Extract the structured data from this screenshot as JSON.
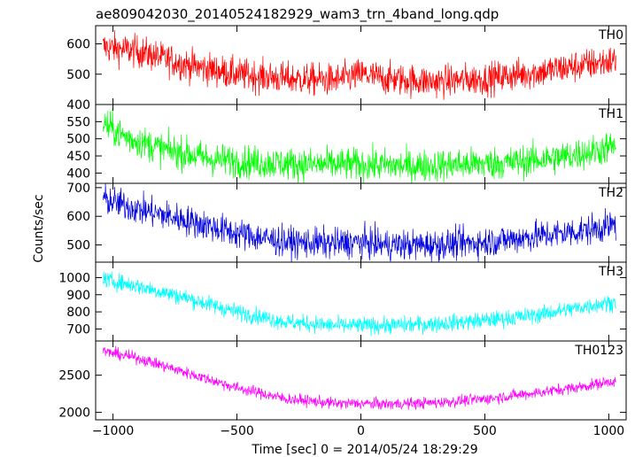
{
  "chart_data": {
    "type": "line",
    "title": "ae809042030_20140524182929_wam3_trn_4band_long.qdp",
    "xlabel": "Time [sec] 0 = 2014/05/24 18:29:29",
    "ylabel": "Counts/sec",
    "xlim": [
      -1070,
      1070
    ],
    "x_ticks": [
      -1000,
      -500,
      0,
      500,
      1000
    ],
    "grid": false,
    "sampling": "noisy light curves, ~8 s bins, trend values listed below",
    "panels": [
      {
        "name": "TH0",
        "color": "#ff0000",
        "ylim": [
          400,
          660
        ],
        "y_ticks": [
          400,
          500,
          600
        ],
        "x": [
          -1040,
          -900,
          -700,
          -500,
          -300,
          -100,
          0,
          100,
          300,
          500,
          700,
          900,
          1030
        ],
        "values": [
          590,
          575,
          530,
          500,
          485,
          480,
          500,
          485,
          475,
          485,
          505,
          530,
          545
        ],
        "noise": 38
      },
      {
        "name": "TH1",
        "color": "#00ff00",
        "ylim": [
          370,
          600
        ],
        "y_ticks": [
          400,
          450,
          500,
          550
        ],
        "x": [
          -1040,
          -950,
          -800,
          -600,
          -400,
          -200,
          0,
          200,
          400,
          600,
          800,
          950,
          1030
        ],
        "values": [
          545,
          505,
          470,
          440,
          430,
          425,
          425,
          420,
          425,
          430,
          445,
          465,
          480
        ],
        "noise": 34
      },
      {
        "name": "TH2",
        "color": "#0000e0",
        "ylim": [
          440,
          715
        ],
        "y_ticks": [
          500,
          600,
          700
        ],
        "x": [
          -1040,
          -900,
          -700,
          -500,
          -300,
          -100,
          0,
          100,
          300,
          500,
          700,
          900,
          1030
        ],
        "values": [
          660,
          625,
          585,
          540,
          510,
          505,
          510,
          500,
          500,
          510,
          530,
          550,
          570
        ],
        "noise": 38
      },
      {
        "name": "TH3",
        "color": "#00ffff",
        "ylim": [
          630,
          1090
        ],
        "y_ticks": [
          700,
          800,
          900,
          1000
        ],
        "x": [
          -1040,
          -900,
          -700,
          -500,
          -300,
          -100,
          0,
          100,
          300,
          500,
          700,
          900,
          1030
        ],
        "values": [
          990,
          950,
          880,
          800,
          740,
          720,
          720,
          720,
          730,
          750,
          780,
          830,
          860
        ],
        "noise": 35
      },
      {
        "name": "TH0123",
        "color": "#ff00ff",
        "ylim": [
          1900,
          2960
        ],
        "y_ticks": [
          2000,
          2500
        ],
        "x": [
          -1040,
          -900,
          -700,
          -500,
          -300,
          -100,
          0,
          100,
          300,
          500,
          700,
          900,
          1030
        ],
        "values": [
          2820,
          2730,
          2530,
          2330,
          2180,
          2120,
          2120,
          2110,
          2130,
          2180,
          2260,
          2350,
          2430
        ],
        "noise": 55
      }
    ]
  }
}
